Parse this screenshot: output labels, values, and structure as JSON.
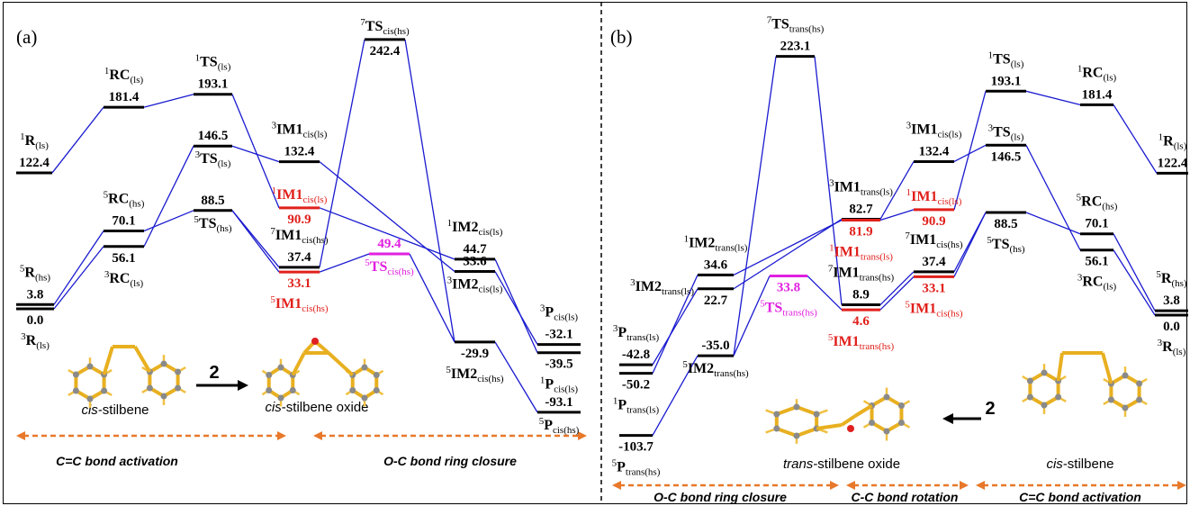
{
  "panels": [
    {
      "tag": "(a)",
      "levels": [
        {
          "spin": "1",
          "name": "R",
          "sub": "(ls)",
          "value": "122.4",
          "color": "#000000"
        },
        {
          "spin": "1",
          "name": "RC",
          "sub": "(ls)",
          "value": "181.4",
          "color": "#000000"
        },
        {
          "spin": "1",
          "name": "TS",
          "sub": "(ls)",
          "value": "193.1",
          "color": "#000000"
        },
        {
          "spin": "3",
          "name": "TS",
          "sub": "(ls)",
          "value": "146.5",
          "color": "#000000"
        },
        {
          "spin": "5",
          "name": "RC",
          "sub": "(hs)",
          "value": "70.1",
          "color": "#000000"
        },
        {
          "spin": "3",
          "name": "RC",
          "sub": "(ls)",
          "value": "56.1",
          "color": "#000000"
        },
        {
          "spin": "5",
          "name": "TS",
          "sub": "(hs)",
          "value": "88.5",
          "color": "#000000"
        },
        {
          "spin": "5",
          "name": "R",
          "sub": "(hs)",
          "value": "3.8",
          "color": "#000000"
        },
        {
          "spin": "3",
          "name": "R",
          "sub": "(ls)",
          "value": "0.0",
          "color": "#000000"
        },
        {
          "spin": "3",
          "name": "IM1",
          "sub": "cis(ls)",
          "value": "132.4",
          "color": "#000000"
        },
        {
          "spin": "1",
          "name": "IM1",
          "sub": "cis(ls)",
          "value": "90.9",
          "color": "#e0201b"
        },
        {
          "spin": "7",
          "name": "IM1",
          "sub": "cis(hs)",
          "value": "37.4",
          "color": "#000000"
        },
        {
          "spin": "5",
          "name": "IM1",
          "sub": "cis(hs)",
          "value": "33.1",
          "color": "#e0201b"
        },
        {
          "spin": "7",
          "name": "TS",
          "sub": "cis(hs)",
          "value": "242.4",
          "color": "#000000"
        },
        {
          "spin": "5",
          "name": "TS",
          "sub": "cis(hs)",
          "value": "49.4",
          "color": "#e020e0"
        },
        {
          "spin": "1",
          "name": "IM2",
          "sub": "cis(ls)",
          "value": "44.7",
          "color": "#000000"
        },
        {
          "spin": "3",
          "name": "IM2",
          "sub": "cis(ls)",
          "value": "33.6",
          "color": "#000000"
        },
        {
          "spin": "5",
          "name": "IM2",
          "sub": "cis(hs)",
          "value": "-29.9",
          "color": "#000000"
        },
        {
          "spin": "3",
          "name": "P",
          "sub": "cis(ls)",
          "value": "-32.1",
          "color": "#000000"
        },
        {
          "spin": "1",
          "name": "P",
          "sub": "cis(ls)",
          "value": "-39.5",
          "color": "#000000"
        },
        {
          "spin": "5",
          "name": "P",
          "sub": "cis(hs)",
          "value": "-93.1",
          "color": "#000000"
        }
      ],
      "molecules": [
        {
          "italic": "cis",
          "text": "-stilbene"
        },
        {
          "italic": "cis",
          "text": "-stilbene oxide"
        }
      ],
      "reaction_number": "2",
      "stages": [
        "C=C bond activation",
        "O-C bond ring closure"
      ]
    },
    {
      "tag": "(b)",
      "levels": [
        {
          "spin": "7",
          "name": "TS",
          "sub": "trans(hs)",
          "value": "223.1",
          "color": "#000000"
        },
        {
          "spin": "1",
          "name": "TS",
          "sub": "(ls)",
          "value": "193.1",
          "color": "#000000"
        },
        {
          "spin": "1",
          "name": "RC",
          "sub": "(ls)",
          "value": "181.4",
          "color": "#000000"
        },
        {
          "spin": "1",
          "name": "R",
          "sub": "(ls)",
          "value": "122.4",
          "color": "#000000"
        },
        {
          "spin": "3",
          "name": "IM1",
          "sub": "cis(ls)",
          "value": "132.4",
          "color": "#000000"
        },
        {
          "spin": "3",
          "name": "TS",
          "sub": "(ls)",
          "value": "146.5",
          "color": "#000000"
        },
        {
          "spin": "3",
          "name": "IM1",
          "sub": "trans(ls)",
          "value": "82.7",
          "color": "#000000"
        },
        {
          "spin": "1",
          "name": "IM1",
          "sub": "trans(ls)",
          "value": "81.9",
          "color": "#e0201b"
        },
        {
          "spin": "1",
          "name": "IM1",
          "sub": "cis(ls)",
          "value": "90.9",
          "color": "#e0201b"
        },
        {
          "spin": "5",
          "name": "RC",
          "sub": "(hs)",
          "value": "70.1",
          "color": "#000000"
        },
        {
          "spin": "3",
          "name": "RC",
          "sub": "(ls)",
          "value": "56.1",
          "color": "#000000"
        },
        {
          "spin": "5",
          "name": "TS",
          "sub": "(hs)",
          "value": "88.5",
          "color": "#000000"
        },
        {
          "spin": "5",
          "name": "R",
          "sub": "(hs)",
          "value": "3.8",
          "color": "#000000"
        },
        {
          "spin": "3",
          "name": "R",
          "sub": "(ls)",
          "value": "0.0",
          "color": "#000000"
        },
        {
          "spin": "7",
          "name": "IM1",
          "sub": "cis(hs)",
          "value": "37.4",
          "color": "#000000"
        },
        {
          "spin": "5",
          "name": "IM1",
          "sub": "cis(hs)",
          "value": "33.1",
          "color": "#e0201b"
        },
        {
          "spin": "7",
          "name": "IM1",
          "sub": "trans(hs)",
          "value": "8.9",
          "color": "#000000"
        },
        {
          "spin": "5",
          "name": "IM1",
          "sub": "trans(hs)",
          "value": "4.6",
          "color": "#e0201b"
        },
        {
          "spin": "5",
          "name": "TS",
          "sub": "trans(hs)",
          "value": "33.8",
          "color": "#e020e0"
        },
        {
          "spin": "1",
          "name": "IM2",
          "sub": "trans(ls)",
          "value": "34.6",
          "color": "#000000"
        },
        {
          "spin": "3",
          "name": "IM2",
          "sub": "trans(ls)",
          "value": "22.7",
          "color": "#000000"
        },
        {
          "spin": "5",
          "name": "IM2",
          "sub": "trans(hs)",
          "value": "-35.0",
          "color": "#000000"
        },
        {
          "spin": "3",
          "name": "P",
          "sub": "trans(ls)",
          "value": "-42.8",
          "color": "#000000"
        },
        {
          "spin": "1",
          "name": "P",
          "sub": "trans(ls)",
          "value": "-50.2",
          "color": "#000000"
        },
        {
          "spin": "5",
          "name": "P",
          "sub": "trans(hs)",
          "value": "-103.7",
          "color": "#000000"
        }
      ],
      "molecules": [
        {
          "italic": "trans",
          "text": "-stilbene oxide"
        },
        {
          "italic": "cis",
          "text": "-stilbene"
        }
      ],
      "reaction_number": "2",
      "stages": [
        "O-C bond ring closure",
        "C-C bond rotation",
        "C=C bond activation"
      ]
    }
  ]
}
